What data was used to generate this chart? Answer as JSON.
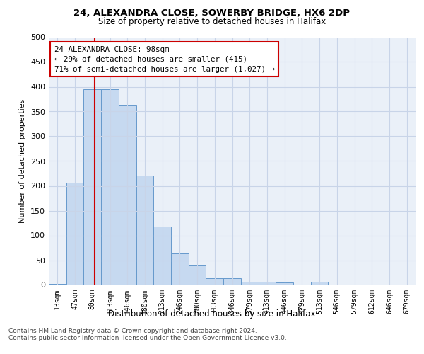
{
  "title1": "24, ALEXANDRA CLOSE, SOWERBY BRIDGE, HX6 2DP",
  "title2": "Size of property relative to detached houses in Halifax",
  "xlabel": "Distribution of detached houses by size in Halifax",
  "ylabel": "Number of detached properties",
  "categories": [
    "13sqm",
    "47sqm",
    "80sqm",
    "113sqm",
    "146sqm",
    "180sqm",
    "213sqm",
    "246sqm",
    "280sqm",
    "313sqm",
    "346sqm",
    "379sqm",
    "413sqm",
    "446sqm",
    "479sqm",
    "513sqm",
    "546sqm",
    "579sqm",
    "612sqm",
    "646sqm",
    "679sqm"
  ],
  "values": [
    2,
    207,
    395,
    395,
    362,
    220,
    118,
    63,
    40,
    13,
    14,
    7,
    6,
    5,
    1,
    6,
    1,
    1,
    0,
    1,
    1
  ],
  "bar_color": "#c6d9f0",
  "bar_edge_color": "#6699cc",
  "red_line_x": 2.15,
  "annotation_text": "24 ALEXANDRA CLOSE: 98sqm\n← 29% of detached houses are smaller (415)\n71% of semi-detached houses are larger (1,027) →",
  "annotation_box_color": "#ffffff",
  "annotation_box_edge": "#cc0000",
  "ylim": [
    0,
    500
  ],
  "yticks": [
    0,
    50,
    100,
    150,
    200,
    250,
    300,
    350,
    400,
    450,
    500
  ],
  "bg_color": "#eaf0f8",
  "grid_color": "#c8d4e8",
  "footer": "Contains HM Land Registry data © Crown copyright and database right 2024.\nContains public sector information licensed under the Open Government Licence v3.0."
}
